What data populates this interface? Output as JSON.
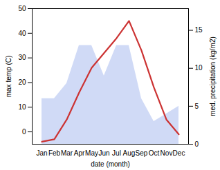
{
  "chart_data": {
    "type": "line",
    "categories": [
      "Jan",
      "Feb",
      "Mar",
      "Apr",
      "May",
      "Jun",
      "Jul",
      "Aug",
      "Sep",
      "Oct",
      "Nov",
      "Dec"
    ],
    "xlabel": "date (month)",
    "ylabel": "max temp (C)",
    "y2label": "med. precipitation (kg/m2)",
    "series": [
      {
        "type": "area",
        "color": "#aabbee",
        "axis": "y2",
        "values": [
          6,
          6,
          8,
          13,
          13,
          9,
          13,
          13,
          6,
          3,
          4,
          5
        ]
      },
      {
        "type": "line",
        "color": "#cc3333",
        "values": [
          -4,
          -3,
          5,
          16,
          26,
          32,
          38,
          45,
          33,
          18,
          5,
          -1
        ]
      }
    ],
    "ylim": [
      -5,
      50
    ],
    "yticks": [
      0,
      10,
      20,
      30,
      40,
      50
    ],
    "y2lim": [
      0,
      17.86
    ],
    "y2ticks": [
      0,
      5,
      10,
      15
    ],
    "grid": false
  }
}
